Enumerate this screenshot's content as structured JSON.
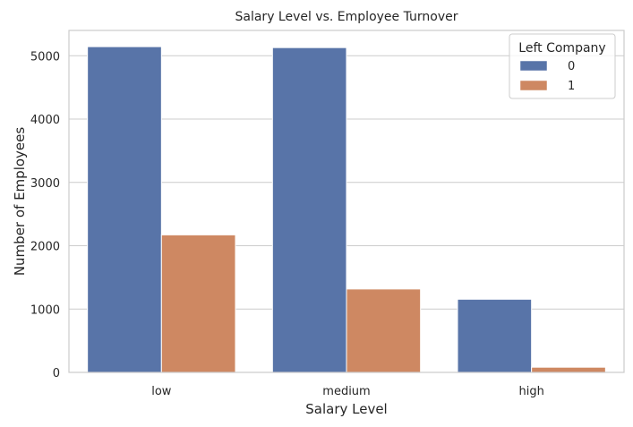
{
  "chart_data": {
    "type": "bar",
    "title": "Salary Level vs. Employee Turnover",
    "xlabel": "Salary Level",
    "ylabel": "Number of Employees",
    "categories": [
      "low",
      "medium",
      "high"
    ],
    "series": [
      {
        "name": "0",
        "values": [
          5144,
          5129,
          1155
        ],
        "color": "#5874a8"
      },
      {
        "name": "1",
        "values": [
          2172,
          1317,
          82
        ],
        "color": "#ce8862"
      }
    ],
    "ylim": [
      0,
      5400
    ],
    "yticks": [
      0,
      1000,
      2000,
      3000,
      4000,
      5000
    ],
    "grid": "horizontal",
    "legend": {
      "title": "Left Company",
      "placement": "top-right"
    },
    "colors": {
      "grid": "#cccccc",
      "frame": "#cccccc",
      "bar_edge": "#ffffff",
      "text": "#262626"
    }
  }
}
